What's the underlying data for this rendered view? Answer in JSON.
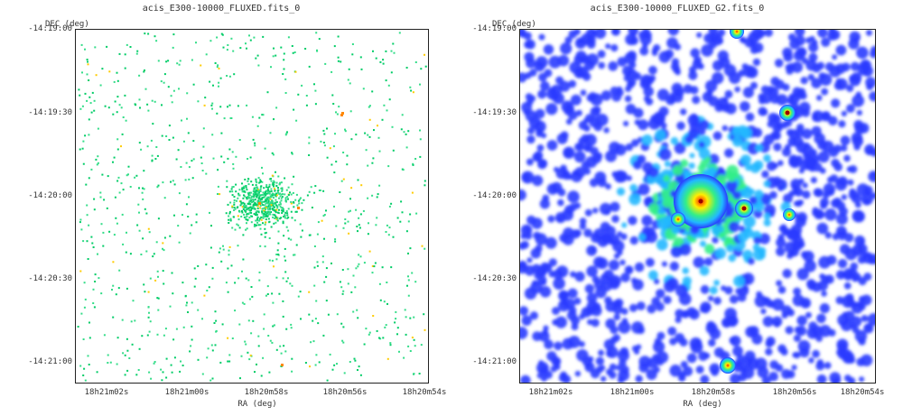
{
  "panels": [
    {
      "title": "acis_E300-10000_FLUXED.fits_0",
      "y_axis_label": "DEC (deg)",
      "x_axis_label": "RA (deg)",
      "y_ticks": [
        "-14:19:00",
        "-14:19:30",
        "-14:20:00",
        "-14:20:30",
        "-14:21:00"
      ],
      "x_ticks": [
        "18h21m02s",
        "18h21m00s",
        "18h20m58s",
        "18h20m56s",
        "18h20m54s"
      ],
      "image_style": "sparse-counts"
    },
    {
      "title": "acis_E300-10000_FLUXED_G2.fits_0",
      "y_axis_label": "DEC (deg)",
      "x_axis_label": "RA (deg)",
      "y_ticks": [
        "-14:19:00",
        "-14:19:30",
        "-14:20:00",
        "-14:20:30",
        "-14:21:00"
      ],
      "x_ticks": [
        "18h21m02s",
        "18h21m00s",
        "18h20m58s",
        "18h20m56s",
        "18h20m54s"
      ],
      "image_style": "smoothed"
    }
  ],
  "colors": {
    "count_low": "#33dd88",
    "count_mid": "#00cc66",
    "count_high": "#ffcc00",
    "smooth_low": "#2a3cff",
    "smooth_mid": "#21b8ff",
    "smooth_green": "#33ee88",
    "smooth_yellow": "#ffee00",
    "smooth_peak": "#ff2200"
  }
}
